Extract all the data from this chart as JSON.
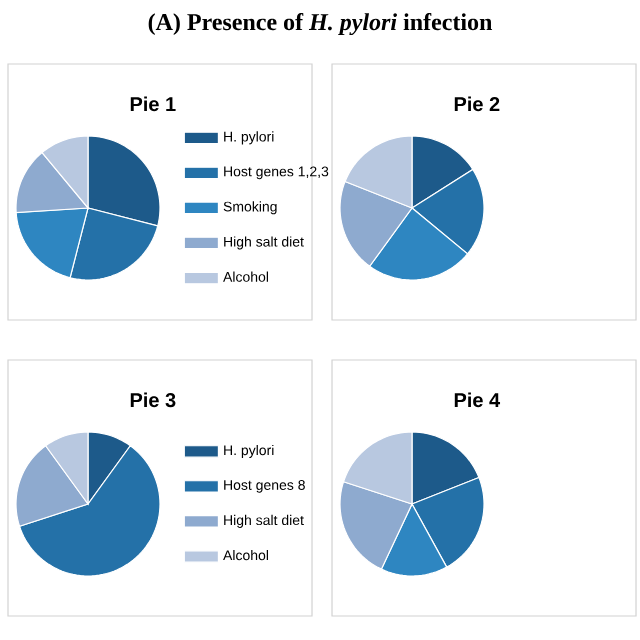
{
  "chart_data": [
    {
      "type": "pie",
      "title": "Pie 1",
      "annotations": [
        "(A) Presence of *H. pylori* infection"
      ],
      "legend": "right",
      "categories": [
        "H. pylori",
        "Host genes 1,2,3",
        "Smoking",
        "High salt diet",
        "Alcohol"
      ],
      "values": [
        29,
        25,
        20,
        15,
        11
      ],
      "colors": [
        "#1d5a8a",
        "#2471a8",
        "#2e86c1",
        "#8eaacf",
        "#b8c8e0"
      ]
    },
    {
      "type": "pie",
      "title": "Pie 2",
      "categories": [
        null,
        null,
        null,
        null,
        null
      ],
      "values": [
        16,
        20,
        24,
        21,
        19
      ],
      "colors": [
        "#1d5a8a",
        "#2471a8",
        "#2e86c1",
        "#8eaacf",
        "#b8c8e0"
      ]
    },
    {
      "type": "pie",
      "title": "Pie 3",
      "legend": "right",
      "categories": [
        "H. pylori",
        "Host genes 8",
        "High salt diet",
        "Alcohol"
      ],
      "values": [
        10,
        60,
        20,
        10
      ],
      "colors": [
        "#1d5a8a",
        "#2471a8",
        "#8eaacf",
        "#b8c8e0"
      ]
    },
    {
      "type": "pie",
      "title": "Pie 4",
      "categories": [
        null,
        null,
        null,
        null,
        null
      ],
      "values": [
        19,
        23,
        15,
        23,
        20
      ],
      "colors": [
        "#1d5a8a",
        "#2471a8",
        "#2e86c1",
        "#8eaacf",
        "#b8c8e0"
      ]
    }
  ]
}
